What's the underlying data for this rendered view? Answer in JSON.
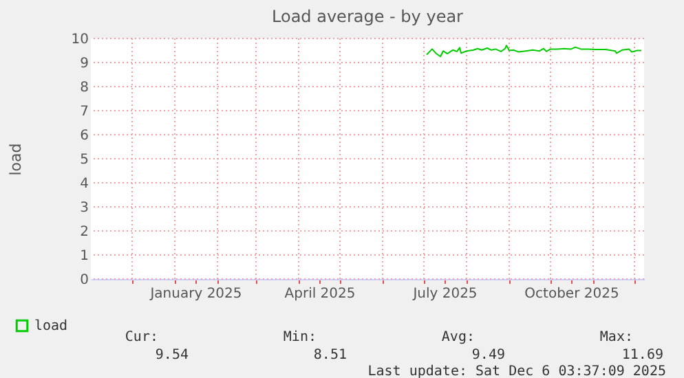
{
  "chart_data": {
    "type": "line",
    "title": "Load average - by year",
    "ylabel": "load",
    "xlim": [
      "2024-11-01",
      "2025-12-08"
    ],
    "ylim": [
      0,
      10
    ],
    "yticks": [
      0,
      1,
      2,
      3,
      4,
      5,
      6,
      7,
      8,
      9,
      10
    ],
    "xticks": [
      {
        "value": "2024-12-01",
        "label": null
      },
      {
        "value": "2025-01-01",
        "label": null
      },
      {
        "value": "2025-01-16",
        "label": "January 2025"
      },
      {
        "value": "2025-02-01",
        "label": null
      },
      {
        "value": "2025-03-01",
        "label": null
      },
      {
        "value": "2025-04-01",
        "label": null
      },
      {
        "value": "2025-04-16",
        "label": "April 2025"
      },
      {
        "value": "2025-05-01",
        "label": null
      },
      {
        "value": "2025-06-01",
        "label": null
      },
      {
        "value": "2025-07-01",
        "label": null
      },
      {
        "value": "2025-07-16",
        "label": "July 2025"
      },
      {
        "value": "2025-08-01",
        "label": null
      },
      {
        "value": "2025-09-01",
        "label": null
      },
      {
        "value": "2025-10-01",
        "label": null
      },
      {
        "value": "2025-10-16",
        "label": "October 2025"
      },
      {
        "value": "2025-11-01",
        "label": null
      },
      {
        "value": "2025-12-01",
        "label": null
      }
    ],
    "grid": true,
    "legend": "bottom left",
    "series": [
      {
        "name": "load",
        "color": "#00cc00",
        "x": [
          "2025-07-03",
          "2025-07-07",
          "2025-07-10",
          "2025-07-13",
          "2025-07-15",
          "2025-07-18",
          "2025-07-22",
          "2025-07-25",
          "2025-07-27",
          "2025-07-28",
          "2025-08-01",
          "2025-08-06",
          "2025-08-09",
          "2025-08-12",
          "2025-08-16",
          "2025-08-19",
          "2025-08-22",
          "2025-08-26",
          "2025-08-29",
          "2025-08-30",
          "2025-09-01",
          "2025-09-04",
          "2025-09-08",
          "2025-09-13",
          "2025-09-18",
          "2025-09-23",
          "2025-09-26",
          "2025-09-28",
          "2025-10-01",
          "2025-10-06",
          "2025-10-11",
          "2025-10-16",
          "2025-10-19",
          "2025-10-23",
          "2025-10-28",
          "2025-11-03",
          "2025-11-10",
          "2025-11-17",
          "2025-11-18",
          "2025-11-22",
          "2025-11-27",
          "2025-11-29",
          "2025-12-03",
          "2025-12-06"
        ],
        "values": [
          9.33,
          9.56,
          9.37,
          9.25,
          9.48,
          9.37,
          9.52,
          9.46,
          9.62,
          9.39,
          9.48,
          9.52,
          9.58,
          9.52,
          9.6,
          9.52,
          9.56,
          9.46,
          9.58,
          9.71,
          9.5,
          9.52,
          9.44,
          9.48,
          9.52,
          9.48,
          9.58,
          9.46,
          9.56,
          9.56,
          9.58,
          9.56,
          9.64,
          9.56,
          9.56,
          9.54,
          9.54,
          9.48,
          9.39,
          9.52,
          9.56,
          9.44,
          9.5,
          9.5
        ]
      }
    ],
    "annotations": [
      "Cur:",
      "Min:",
      "Avg:",
      "Max:",
      "9.54",
      "8.51",
      "9.49",
      "11.69",
      "Last update: Sat Dec  6 03:37:09 2025"
    ]
  }
}
